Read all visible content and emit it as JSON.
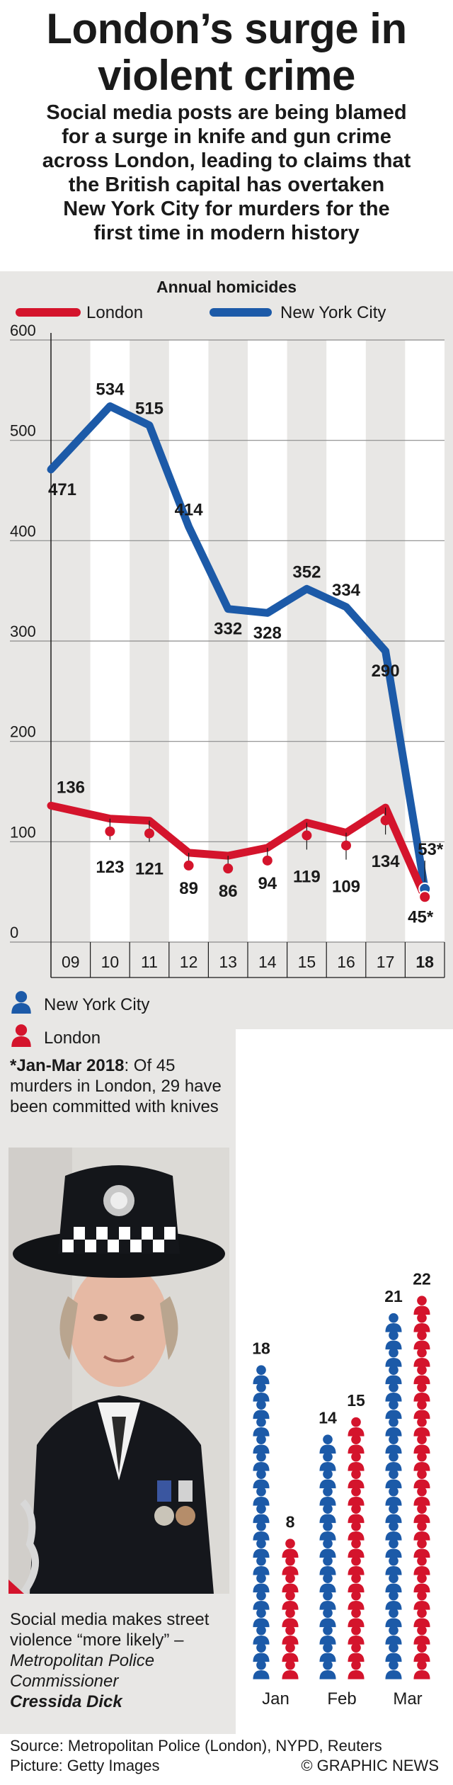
{
  "header": {
    "title_line1": "London’s surge in",
    "title_line2": "violent crime",
    "subtitle_lines": [
      "Social media posts are being blamed",
      "for a surge in knife and gun crime",
      "across London, leading to claims that",
      "the British capital has overtaken",
      "New York City for murders for the",
      "first time in modern history"
    ]
  },
  "colors": {
    "london": "#d4142c",
    "nyc": "#1c5aa8",
    "background": "#e8e7e5",
    "text": "#1a1a1a"
  },
  "chart_data": [
    {
      "type": "line",
      "title": "Annual homicides",
      "categories": [
        "09",
        "10",
        "11",
        "12",
        "13",
        "14",
        "15",
        "16",
        "17",
        "18"
      ],
      "ylim": [
        0,
        600
      ],
      "yticks": [
        0,
        100,
        200,
        300,
        400,
        500,
        600
      ],
      "legend": [
        "London",
        "New York City"
      ],
      "series": [
        {
          "name": "New York City",
          "values": [
            471,
            534,
            515,
            414,
            332,
            328,
            352,
            334,
            290,
            53
          ],
          "labels": [
            "471",
            "534",
            "515",
            "414",
            "332",
            "328",
            "352",
            "334",
            "290",
            "53*"
          ]
        },
        {
          "name": "London",
          "values": [
            136,
            123,
            121,
            89,
            86,
            94,
            119,
            109,
            134,
            45
          ],
          "labels": [
            "136",
            "123",
            "121",
            "89",
            "86",
            "94",
            "119",
            "109",
            "134",
            "45*"
          ]
        }
      ]
    },
    {
      "type": "pictogram",
      "categories": [
        "Jan",
        "Feb",
        "Mar"
      ],
      "legend": [
        "New York City",
        "London"
      ],
      "series": [
        {
          "name": "New York City",
          "values": [
            18,
            14,
            21
          ]
        },
        {
          "name": "London",
          "values": [
            8,
            15,
            22
          ]
        }
      ]
    }
  ],
  "note": {
    "bold": "*Jan-Mar 2018",
    "rest": ": Of 45 murders in London, 29 have been committed with knives"
  },
  "quote": {
    "text": "Social media makes street violence “more likely” – ",
    "attribution": "Metropolitan Police Commissioner",
    "name": "Cressida Dick"
  },
  "footer": {
    "source": "Source: Metropolitan Police (London), NYPD, Reuters",
    "picture": "Picture: Getty Images",
    "copyright": "© GRAPHIC NEWS"
  }
}
